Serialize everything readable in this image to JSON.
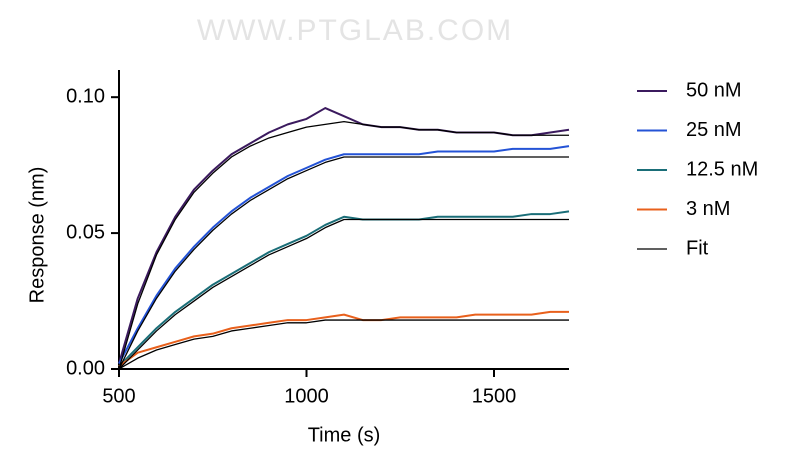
{
  "watermark": "WWW.PTGLAB.COM",
  "chart_data": {
    "type": "line",
    "xlabel": "Time (s)",
    "ylabel": "Response  (nm)",
    "x": [
      500,
      550,
      600,
      650,
      700,
      750,
      800,
      850,
      900,
      950,
      1000,
      1050,
      1100,
      1150,
      1200,
      1250,
      1300,
      1350,
      1400,
      1450,
      1500,
      1550,
      1600,
      1650,
      1700
    ],
    "xlim": [
      500,
      1700
    ],
    "xticks": [
      500,
      1000,
      1500
    ],
    "ylim": [
      0,
      0.11
    ],
    "yticks": [
      {
        "value": 0,
        "label": "0.00"
      },
      {
        "value": 0.05,
        "label": "0.05"
      },
      {
        "value": 0.1,
        "label": "0.10"
      }
    ],
    "fit_name": "Fit",
    "fit_color": "#000000",
    "series": [
      {
        "name": "50 nM",
        "color": "#3b1a5e",
        "values": [
          0.002,
          0.026,
          0.043,
          0.056,
          0.066,
          0.073,
          0.079,
          0.083,
          0.087,
          0.09,
          0.092,
          0.096,
          0.093,
          0.09,
          0.089,
          0.089,
          0.088,
          0.088,
          0.087,
          0.087,
          0.087,
          0.086,
          0.086,
          0.087,
          0.088
        ],
        "fit": [
          0,
          0.024,
          0.042,
          0.055,
          0.065,
          0.072,
          0.078,
          0.082,
          0.085,
          0.087,
          0.089,
          0.09,
          0.091,
          0.09,
          0.089,
          0.089,
          0.088,
          0.088,
          0.087,
          0.087,
          0.087,
          0.086,
          0.086,
          0.086,
          0.086
        ]
      },
      {
        "name": "25 nM",
        "color": "#2453d6",
        "values": [
          0.002,
          0.015,
          0.027,
          0.037,
          0.045,
          0.052,
          0.058,
          0.063,
          0.067,
          0.071,
          0.074,
          0.077,
          0.079,
          0.079,
          0.079,
          0.079,
          0.079,
          0.08,
          0.08,
          0.08,
          0.08,
          0.081,
          0.081,
          0.081,
          0.082
        ],
        "fit": [
          0,
          0.014,
          0.026,
          0.036,
          0.044,
          0.051,
          0.057,
          0.062,
          0.066,
          0.07,
          0.073,
          0.076,
          0.078,
          0.078,
          0.078,
          0.078,
          0.078,
          0.078,
          0.078,
          0.078,
          0.078,
          0.078,
          0.078,
          0.078,
          0.078
        ]
      },
      {
        "name": "12.5 nM",
        "color": "#1a6e78",
        "values": [
          0.001,
          0.008,
          0.015,
          0.021,
          0.026,
          0.031,
          0.035,
          0.039,
          0.043,
          0.046,
          0.049,
          0.053,
          0.056,
          0.055,
          0.055,
          0.055,
          0.055,
          0.056,
          0.056,
          0.056,
          0.056,
          0.056,
          0.057,
          0.057,
          0.058
        ],
        "fit": [
          0,
          0.007,
          0.014,
          0.02,
          0.025,
          0.03,
          0.034,
          0.038,
          0.042,
          0.045,
          0.048,
          0.052,
          0.055,
          0.055,
          0.055,
          0.055,
          0.055,
          0.055,
          0.055,
          0.055,
          0.055,
          0.055,
          0.055,
          0.055,
          0.055
        ]
      },
      {
        "name": "3 nM",
        "color": "#e8601c",
        "values": [
          0.001,
          0.006,
          0.008,
          0.01,
          0.012,
          0.013,
          0.015,
          0.016,
          0.017,
          0.018,
          0.018,
          0.019,
          0.02,
          0.018,
          0.018,
          0.019,
          0.019,
          0.019,
          0.019,
          0.02,
          0.02,
          0.02,
          0.02,
          0.021,
          0.021
        ],
        "fit": [
          0,
          0.004,
          0.007,
          0.009,
          0.011,
          0.012,
          0.014,
          0.015,
          0.016,
          0.017,
          0.017,
          0.018,
          0.018,
          0.018,
          0.018,
          0.018,
          0.018,
          0.018,
          0.018,
          0.018,
          0.018,
          0.018,
          0.018,
          0.018,
          0.018
        ]
      }
    ]
  }
}
